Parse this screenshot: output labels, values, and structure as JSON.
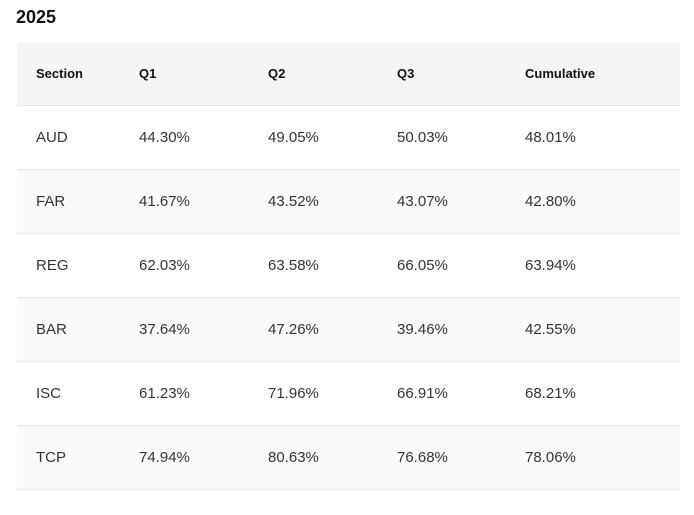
{
  "title": "2025",
  "table": {
    "headers": [
      "Section",
      "Q1",
      "Q2",
      "Q3",
      "Cumulative"
    ],
    "rows": [
      [
        "AUD",
        "44.30%",
        "49.05%",
        "50.03%",
        "48.01%"
      ],
      [
        "FAR",
        "41.67%",
        "43.52%",
        "43.07%",
        "42.80%"
      ],
      [
        "REG",
        "62.03%",
        "63.58%",
        "66.05%",
        "63.94%"
      ],
      [
        "BAR",
        "37.64%",
        "47.26%",
        "39.46%",
        "42.55%"
      ],
      [
        "ISC",
        "61.23%",
        "71.96%",
        "66.91%",
        "68.21%"
      ],
      [
        "TCP",
        "74.94%",
        "80.63%",
        "76.68%",
        "78.06%"
      ]
    ]
  }
}
